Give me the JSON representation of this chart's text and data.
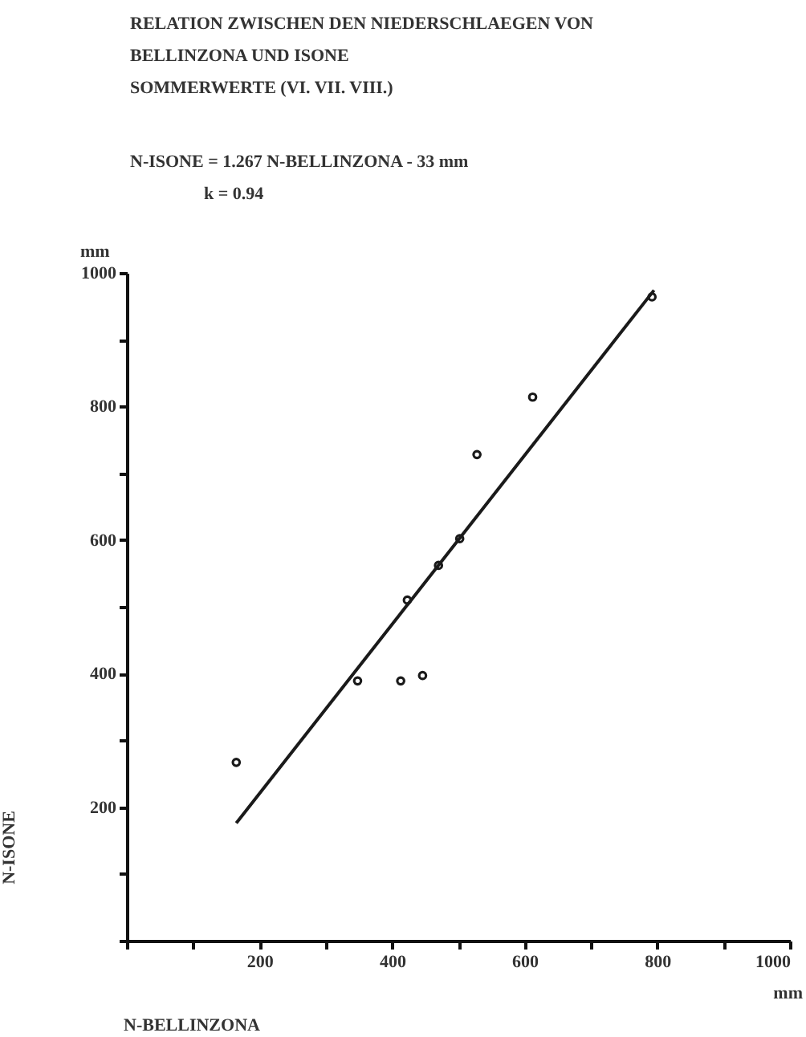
{
  "chart_data": {
    "type": "scatter",
    "title": "RELATION ZWISCHEN DEN NIEDERSCHLAEGEN VON\nBELLINZONA UND ISONE",
    "subtitle": "SOMMERWERTE (VI. VII. VIII.)",
    "xlabel": "N-BELLINZONA",
    "ylabel": "N-ISONE",
    "annotations": [
      "N-ISONE = 1.267    N-BELLINZONA - 33 mm",
      "k = 0.94",
      "mm",
      "mm"
    ],
    "x": [
      165,
      348,
      413,
      446,
      423,
      470,
      502,
      528,
      612,
      792
    ],
    "series": [
      {
        "color": "#1a1a1a",
        "values": [
          267,
          389,
          389,
          397,
          510,
          562,
          602,
          728,
          814,
          964
        ]
      },
      {
        "type": "line",
        "marker": "none",
        "color": "#1a1a1a",
        "x": [
          165,
          795
        ],
        "values": [
          176,
          974
        ]
      }
    ],
    "marker": "circle",
    "line_style": "solid",
    "grid": false,
    "xlim": [
      0,
      1000
    ],
    "ylim": [
      0,
      1000
    ],
    "xticks": [
      {
        "value": 0,
        "label": null
      },
      {
        "value": 100,
        "label": null
      },
      200,
      {
        "value": 300,
        "label": null
      },
      400,
      {
        "value": 500,
        "label": null
      },
      600,
      {
        "value": 700,
        "label": null
      },
      800,
      {
        "value": 900,
        "label": null
      },
      1000
    ],
    "yticks": [
      {
        "value": 0,
        "label": null
      },
      {
        "value": 100,
        "label": null
      },
      200,
      {
        "value": 300,
        "label": null
      },
      400,
      {
        "value": 500,
        "label": null
      },
      600,
      {
        "value": 700,
        "label": null
      },
      800,
      {
        "value": 900,
        "label": null
      },
      1000
    ]
  }
}
